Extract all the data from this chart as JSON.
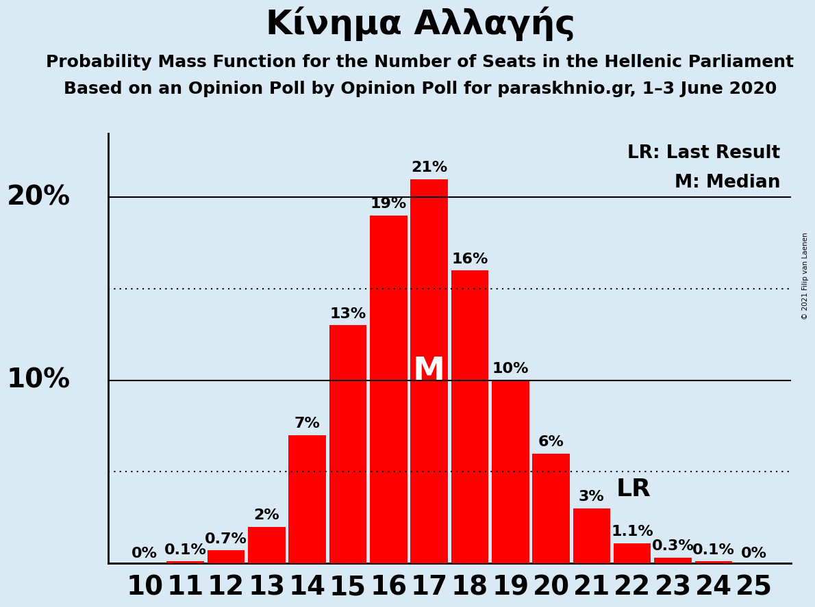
{
  "title": "Κίνημα Αλλαγής",
  "subtitle1": "Probability Mass Function for the Number of Seats in the Hellenic Parliament",
  "subtitle2": "Based on an Opinion Poll by Opinion Poll for paraskhnio.gr, 1–3 June 2020",
  "copyright": "© 2021 Filip van Laenen",
  "background_color": "#daeaf5",
  "bar_color": "#ff0000",
  "seats": [
    10,
    11,
    12,
    13,
    14,
    15,
    16,
    17,
    18,
    19,
    20,
    21,
    22,
    23,
    24,
    25
  ],
  "probabilities": [
    0.0,
    0.1,
    0.7,
    2.0,
    7.0,
    13.0,
    19.0,
    21.0,
    16.0,
    10.0,
    6.0,
    3.0,
    1.1,
    0.3,
    0.1,
    0.0
  ],
  "labels": [
    "0%",
    "0.1%",
    "0.7%",
    "2%",
    "7%",
    "13%",
    "19%",
    "21%",
    "16%",
    "10%",
    "6%",
    "3%",
    "1.1%",
    "0.3%",
    "0.1%",
    "0%"
  ],
  "median_seat": 17,
  "lr_seat": 21,
  "lr_label": "LR",
  "median_label": "M",
  "dotted_lines": [
    5.0,
    15.0
  ],
  "solid_lines": [
    10.0,
    20.0
  ],
  "ylim": [
    0,
    23.5
  ],
  "legend_lr": "LR: Last Result",
  "legend_m": "M: Median",
  "title_fontsize": 36,
  "subtitle_fontsize": 18,
  "bar_label_fontsize": 16,
  "tick_fontsize": 28,
  "ytick_positions": [
    10,
    20
  ],
  "ytick_labels": [
    "10%",
    "20%"
  ]
}
